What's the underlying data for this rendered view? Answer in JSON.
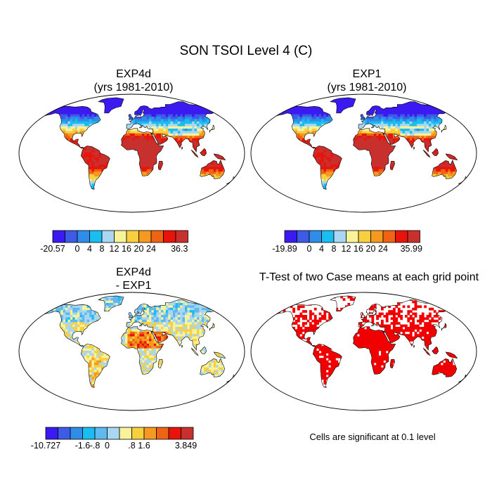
{
  "main_title": "SON TSOI Level 4 (C)",
  "panels": [
    {
      "id": "exp4d",
      "title_line1": "EXP4d",
      "title_line2": "(yrs 1981-2010)"
    },
    {
      "id": "exp1",
      "title_line1": "EXP1",
      "title_line2": "(yrs 1981-2010)"
    },
    {
      "id": "diff",
      "title_line1": "EXP4d",
      "title_line2": "- EXP1"
    },
    {
      "id": "ttest",
      "title_line1": "T-Test of two Case means at each grid point",
      "title_line2": ""
    }
  ],
  "colorbars": {
    "exp4d": {
      "colors": [
        "#3a1af0",
        "#3d5be6",
        "#2f8de8",
        "#19bdf0",
        "#a9d6f0",
        "#f8f29a",
        "#f8cf3f",
        "#f59a20",
        "#ee6414",
        "#e8140c",
        "#c8302e"
      ],
      "labels": [
        "-20.57",
        "0",
        "4",
        "8",
        "12",
        "16",
        "20",
        "24",
        "36.3"
      ]
    },
    "exp1": {
      "colors": [
        "#3a1af0",
        "#3d5be6",
        "#2f8de8",
        "#19bdf0",
        "#a9d6f0",
        "#f8f29a",
        "#f8cf3f",
        "#f59a20",
        "#ee6414",
        "#e8140c",
        "#c8302e"
      ],
      "labels": [
        "-19.89",
        "0",
        "4",
        "8",
        "12",
        "16",
        "20",
        "24",
        "35.99"
      ]
    },
    "diff": {
      "colors": [
        "#3a1af0",
        "#3d5be6",
        "#2f8de8",
        "#19bdf0",
        "#5fb8ee",
        "#a9d6f0",
        "#f8f29a",
        "#f8cf3f",
        "#f59a20",
        "#ee6414",
        "#e8140c",
        "#c8302e"
      ],
      "labels": [
        "-10.727",
        "-1.6",
        "-.8",
        "0",
        ".8",
        "1.6",
        "3.849"
      ]
    }
  },
  "ttest_note": "Cells are significant at 0.1 level"
}
